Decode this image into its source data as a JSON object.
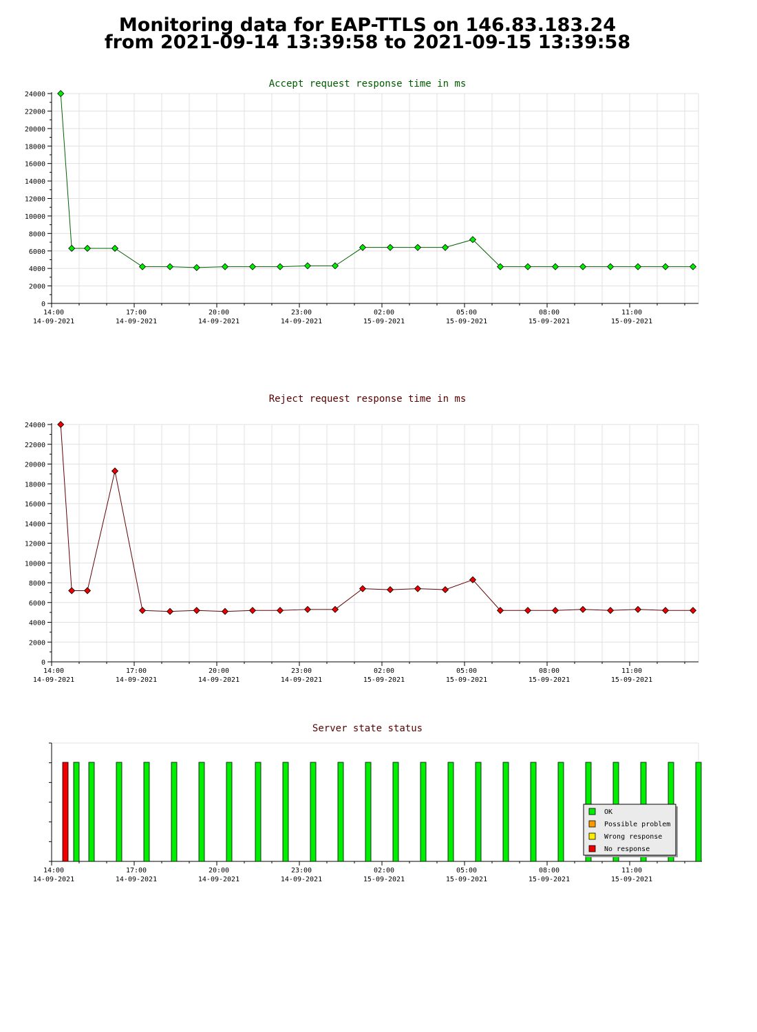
{
  "page": {
    "title_line1": "Monitoring data for EAP-TTLS on 146.83.183.24",
    "title_line2": "from 2021-09-14 13:39:58 to 2021-09-15 13:39:58"
  },
  "x_axis": {
    "ticks": [
      {
        "time": "14:00",
        "date": "14-09-2021",
        "h": 0
      },
      {
        "time": "17:00",
        "date": "14-09-2021",
        "h": 3
      },
      {
        "time": "20:00",
        "date": "14-09-2021",
        "h": 6
      },
      {
        "time": "23:00",
        "date": "14-09-2021",
        "h": 9
      },
      {
        "time": "02:00",
        "date": "15-09-2021",
        "h": 12
      },
      {
        "time": "05:00",
        "date": "15-09-2021",
        "h": 15
      },
      {
        "time": "08:00",
        "date": "15-09-2021",
        "h": 18
      },
      {
        "time": "11:00",
        "date": "15-09-2021",
        "h": 21
      }
    ]
  },
  "chart_data": [
    {
      "type": "line",
      "title": "Accept request response time in ms",
      "title_color": "#005a00",
      "line_color": "#006000",
      "marker_color": "#00ee00",
      "ylim": [
        0,
        24000
      ],
      "y_ticks": [
        0,
        2000,
        4000,
        6000,
        8000,
        10000,
        12000,
        14000,
        16000,
        18000,
        20000,
        22000,
        24000
      ],
      "x_hours": [
        0.33,
        0.73,
        1.3,
        2.3,
        3.3,
        4.3,
        5.27,
        6.3,
        7.3,
        8.3,
        9.3,
        10.3,
        11.3,
        12.3,
        13.3,
        14.3,
        15.3,
        16.3,
        17.3,
        18.3,
        19.3,
        20.3,
        21.3,
        22.3,
        23.3
      ],
      "values": [
        24000,
        6300,
        6300,
        6300,
        4200,
        4200,
        4100,
        4200,
        4200,
        4200,
        4300,
        4300,
        6400,
        6400,
        6400,
        6400,
        7300,
        4200,
        4200,
        4200,
        4200,
        4200,
        4200,
        4200,
        4200
      ]
    },
    {
      "type": "line",
      "title": "Reject request response time in ms",
      "title_color": "#5a0000",
      "line_color": "#600000",
      "marker_color": "#ee0000",
      "ylim": [
        0,
        24000
      ],
      "y_ticks": [
        0,
        2000,
        4000,
        6000,
        8000,
        10000,
        12000,
        14000,
        16000,
        18000,
        20000,
        22000,
        24000
      ],
      "x_hours": [
        0.33,
        0.73,
        1.3,
        2.3,
        3.3,
        4.3,
        5.27,
        6.3,
        7.3,
        8.3,
        9.3,
        10.3,
        11.3,
        12.3,
        13.3,
        14.3,
        15.3,
        16.3,
        17.3,
        18.3,
        19.3,
        20.3,
        21.3,
        22.3,
        23.3
      ],
      "values": [
        24000,
        7200,
        7200,
        19300,
        5200,
        5100,
        5200,
        5100,
        5200,
        5200,
        5300,
        5300,
        7400,
        7300,
        7400,
        7300,
        8300,
        5200,
        5200,
        5200,
        5300,
        5200,
        5300,
        5200,
        5200
      ]
    },
    {
      "type": "bar",
      "title": "Server state status",
      "title_color": "#5a0000",
      "x_hours": [
        0.5,
        0.9,
        1.45,
        2.45,
        3.45,
        4.45,
        5.45,
        6.45,
        7.5,
        8.5,
        9.5,
        10.5,
        11.5,
        12.5,
        13.5,
        14.5,
        15.5,
        16.5,
        17.5,
        18.5,
        19.5,
        20.5,
        21.5,
        22.5,
        23.5
      ],
      "states": [
        "No response",
        "OK",
        "OK",
        "OK",
        "OK",
        "OK",
        "OK",
        "OK",
        "OK",
        "OK",
        "OK",
        "OK",
        "OK",
        "OK",
        "OK",
        "OK",
        "OK",
        "OK",
        "OK",
        "OK",
        "OK",
        "OK",
        "OK",
        "OK",
        "OK"
      ],
      "legend": [
        {
          "label": "OK",
          "color": "#00ee00"
        },
        {
          "label": "Possible problem",
          "color": "#ff9900"
        },
        {
          "label": "Wrong response",
          "color": "#ffee00"
        },
        {
          "label": "No response",
          "color": "#ee0000"
        }
      ],
      "legend_position": "bottom-right"
    }
  ]
}
